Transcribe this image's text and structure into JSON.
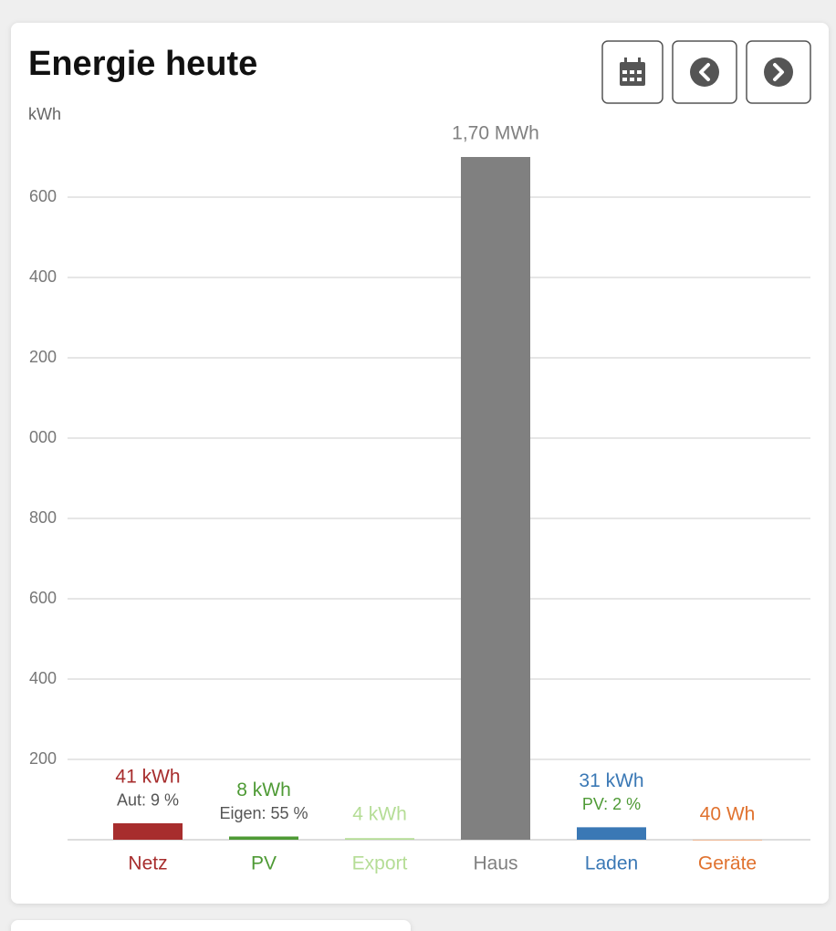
{
  "chart_data": {
    "type": "bar",
    "title": "Energie heute",
    "y_label": "kWh",
    "categories": [
      "Netz",
      "PV",
      "Export",
      "Haus",
      "Laden",
      "Geräte"
    ],
    "values": [
      41,
      8,
      4,
      1700,
      31,
      0.04
    ],
    "value_labels": [
      "41 kWh",
      "8 kWh",
      "4 kWh",
      "1,70 MWh",
      "31 kWh",
      "40 Wh"
    ],
    "sublabels": [
      "Aut: 9 %",
      "Eigen: 55 %",
      null,
      null,
      "PV: 2 %",
      null
    ],
    "colors": [
      "#a72d2d",
      "#4e9a35",
      "#b5dd96",
      "#808080",
      "#3a78b5",
      "#e0722f"
    ],
    "ylim": [
      0,
      1800
    ],
    "yticks": [
      {
        "value": 1600,
        "label": "600"
      },
      {
        "value": 1400,
        "label": "400"
      },
      {
        "value": 1200,
        "label": "200"
      },
      {
        "value": 1000,
        "label": "000"
      },
      800,
      600,
      400,
      200
    ],
    "grid": true
  }
}
